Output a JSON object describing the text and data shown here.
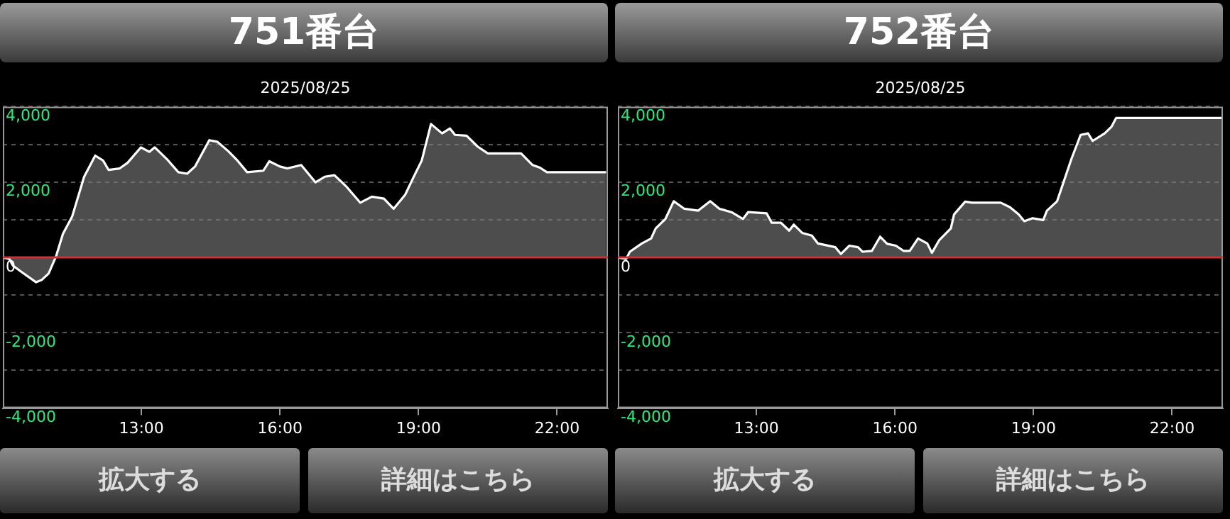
{
  "chart_data": [
    {
      "type": "area",
      "title": "751番台",
      "subtitle": "2025/08/25",
      "annotations": [
        "拡大する",
        "詳細はこちら"
      ],
      "x": [
        10.0,
        10.14,
        10.22,
        10.43,
        10.72,
        10.84,
        10.99,
        11.15,
        11.3,
        11.5,
        11.76,
        12.0,
        12.17,
        12.29,
        12.53,
        12.7,
        12.99,
        13.17,
        13.29,
        13.55,
        13.8,
        13.99,
        14.16,
        14.47,
        14.64,
        14.88,
        15.08,
        15.29,
        15.64,
        15.77,
        16.0,
        16.16,
        16.46,
        16.77,
        16.97,
        17.18,
        17.43,
        17.74,
        17.99,
        18.25,
        18.46,
        18.71,
        18.92,
        19.07,
        19.27,
        19.51,
        19.68,
        19.79,
        20.04,
        20.28,
        20.5,
        21.22,
        21.47,
        21.63,
        21.78,
        23.06
      ],
      "series": [
        {
          "color": "#ffffff",
          "values": [
            0,
            -40,
            -220,
            -410,
            -660,
            -600,
            -430,
            20,
            620,
            1080,
            2140,
            2700,
            2570,
            2320,
            2360,
            2510,
            2920,
            2800,
            2920,
            2610,
            2260,
            2220,
            2410,
            3110,
            3070,
            2820,
            2570,
            2260,
            2300,
            2550,
            2410,
            2360,
            2450,
            1990,
            2140,
            2180,
            1890,
            1450,
            1610,
            1560,
            1290,
            1660,
            2200,
            2570,
            3540,
            3290,
            3420,
            3250,
            3230,
            2940,
            2760,
            2760,
            2450,
            2380,
            2260,
            2260
          ]
        }
      ],
      "xlim": [
        10,
        23.1
      ],
      "xticks": [
        {
          "value": 13,
          "label": "13:00"
        },
        {
          "value": 16,
          "label": "16:00"
        },
        {
          "value": 19,
          "label": "19:00"
        },
        {
          "value": 22,
          "label": "22:00"
        }
      ],
      "ylim": [
        -4000,
        4000
      ],
      "yticks": [
        {
          "value": -4000,
          "label": "-4,000"
        },
        {
          "value": -3000,
          "label": null
        },
        {
          "value": -2000,
          "label": "-2,000"
        },
        {
          "value": -1000,
          "label": null
        },
        0,
        {
          "value": 1000,
          "label": null
        },
        {
          "value": 2000,
          "label": "2,000"
        },
        {
          "value": 3000,
          "label": null
        },
        {
          "value": 4000,
          "label": "4,000"
        }
      ],
      "ref_lines": [
        {
          "axis": "y",
          "value": 0,
          "color": "#c83232"
        }
      ],
      "grid": "y",
      "legend": false,
      "marker": "none",
      "line_style": "solid"
    },
    {
      "type": "area",
      "title": "752番台",
      "subtitle": "2025/08/25",
      "annotations": [
        "拡大する",
        "詳細はこちら"
      ],
      "x": [
        10.0,
        10.18,
        10.26,
        10.52,
        10.72,
        10.82,
        11.03,
        11.21,
        11.44,
        11.74,
        12.0,
        12.2,
        12.46,
        12.71,
        12.82,
        13.22,
        13.33,
        13.53,
        13.71,
        13.81,
        13.99,
        14.2,
        14.33,
        14.71,
        14.83,
        15.01,
        15.2,
        15.3,
        15.5,
        15.68,
        15.83,
        16.02,
        16.19,
        16.32,
        16.5,
        16.7,
        16.8,
        16.96,
        17.21,
        17.28,
        17.52,
        17.67,
        18.29,
        18.49,
        18.68,
        18.8,
        18.98,
        19.21,
        19.29,
        19.51,
        19.82,
        20.02,
        20.18,
        20.28,
        20.54,
        20.69,
        20.79,
        23.07
      ],
      "series": [
        {
          "color": "#ffffff",
          "values": [
            0,
            -40,
            150,
            370,
            500,
            770,
            1020,
            1490,
            1290,
            1240,
            1490,
            1290,
            1200,
            1020,
            1200,
            1170,
            920,
            920,
            710,
            870,
            650,
            580,
            370,
            270,
            90,
            310,
            270,
            150,
            170,
            550,
            360,
            310,
            170,
            170,
            500,
            370,
            120,
            460,
            770,
            1140,
            1480,
            1450,
            1450,
            1330,
            1140,
            960,
            1040,
            990,
            1240,
            1490,
            2610,
            3250,
            3290,
            3090,
            3290,
            3470,
            3700,
            3700
          ]
        }
      ],
      "xlim": [
        10,
        23.1
      ],
      "xticks": [
        {
          "value": 13,
          "label": "13:00"
        },
        {
          "value": 16,
          "label": "16:00"
        },
        {
          "value": 19,
          "label": "19:00"
        },
        {
          "value": 22,
          "label": "22:00"
        }
      ],
      "ylim": [
        -4000,
        4000
      ],
      "yticks": [
        {
          "value": -4000,
          "label": "-4,000"
        },
        {
          "value": -3000,
          "label": null
        },
        {
          "value": -2000,
          "label": "-2,000"
        },
        {
          "value": -1000,
          "label": null
        },
        0,
        {
          "value": 1000,
          "label": null
        },
        {
          "value": 2000,
          "label": "2,000"
        },
        {
          "value": 3000,
          "label": null
        },
        {
          "value": 4000,
          "label": "4,000"
        }
      ],
      "ref_lines": [
        {
          "axis": "y",
          "value": 0,
          "color": "#c83232"
        }
      ],
      "grid": "y",
      "legend": false,
      "marker": "none",
      "line_style": "solid"
    }
  ]
}
